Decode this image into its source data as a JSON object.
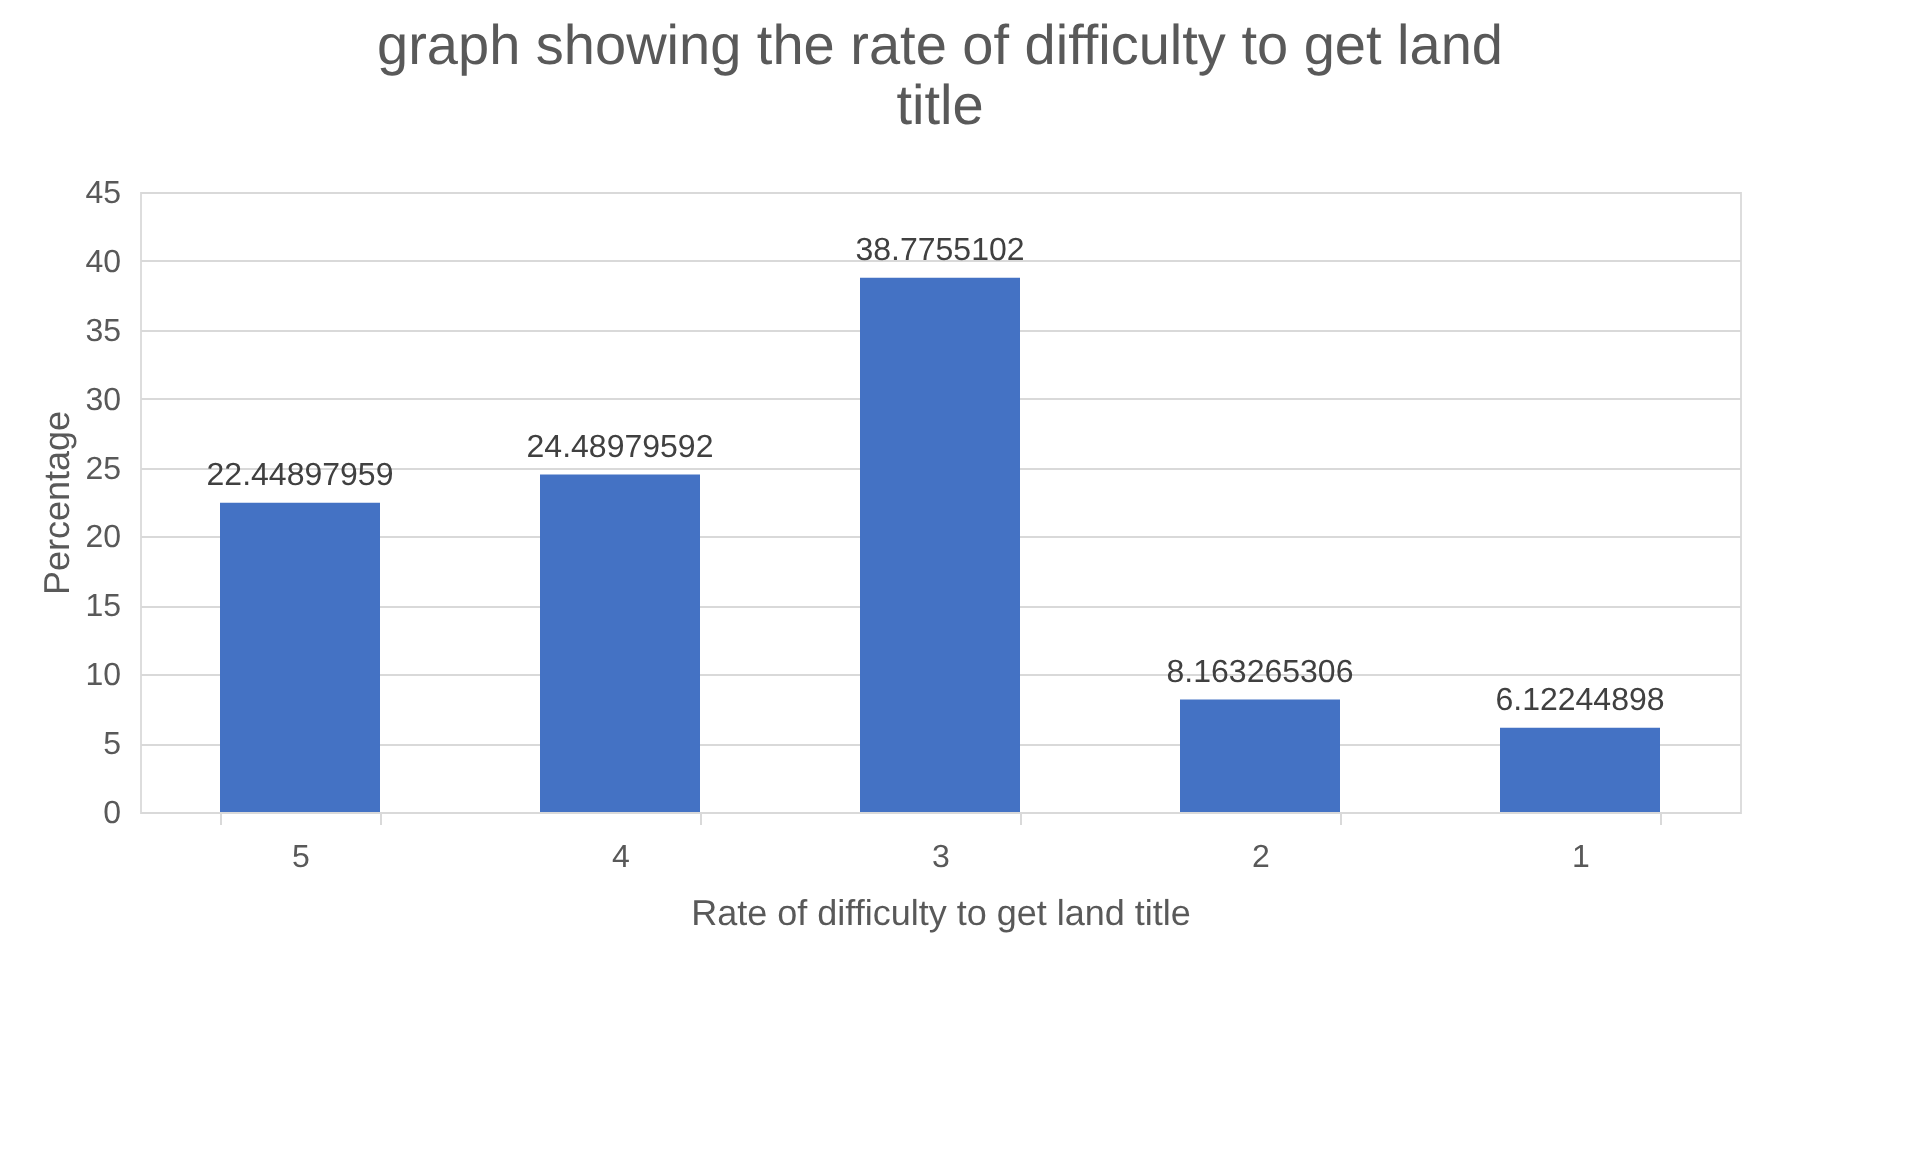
{
  "chart_data": {
    "type": "bar",
    "title": "graph showing the  rate of difficulty to get land title",
    "xlabel": "Rate of difficulty to get land title",
    "ylabel": "Percentage",
    "categories": [
      "5",
      "4",
      "3",
      "2",
      "1"
    ],
    "values": [
      22.44897959,
      24.48979592,
      38.7755102,
      8.163265306,
      6.12244898
    ],
    "color": "#4472c4",
    "ylim": [
      0,
      45
    ],
    "yticks": [
      0,
      5,
      10,
      15,
      20,
      25,
      30,
      35,
      40,
      45
    ],
    "grid": "y",
    "data_labels": true
  }
}
